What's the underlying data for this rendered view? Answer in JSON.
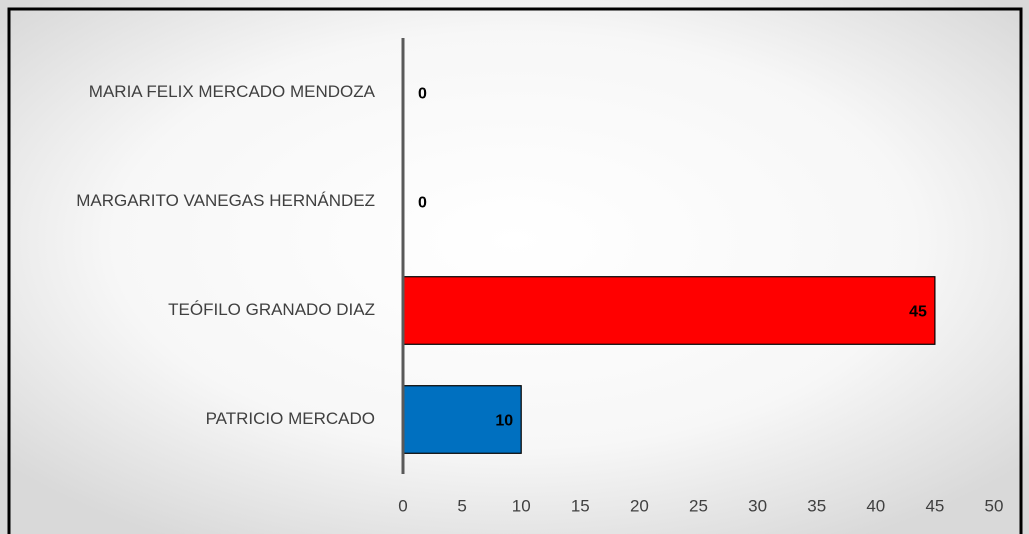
{
  "chart_data": {
    "type": "barh",
    "categories": [
      "MARIA FELIX MERCADO MENDOZA",
      "MARGARITO VANEGAS HERNÁNDEZ",
      "TEÓFILO GRANADO DIAZ",
      "PATRICIO MERCADO"
    ],
    "values": [
      0,
      0,
      45,
      10
    ],
    "colors": [
      "#0070c0",
      "#0070c0",
      "#ff0000",
      "#0070c0"
    ],
    "xlim": [
      0,
      50
    ],
    "xticks": [
      0,
      5,
      10,
      15,
      20,
      25,
      30,
      35,
      40,
      45,
      50
    ]
  }
}
